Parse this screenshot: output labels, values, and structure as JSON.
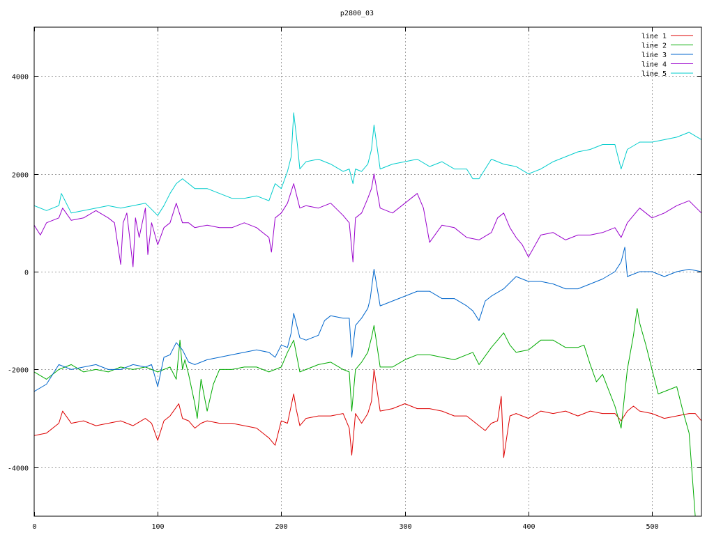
{
  "chart_data": {
    "type": "line",
    "title": "p2800_03",
    "xlabel": "",
    "ylabel": "",
    "xlim": [
      0,
      540
    ],
    "ylim": [
      -5000,
      5000
    ],
    "x_ticks": [
      0,
      100,
      200,
      300,
      400,
      500
    ],
    "y_ticks": [
      -4000,
      -2000,
      0,
      2000,
      4000
    ],
    "x_tick_labels": [
      "0",
      "100",
      "200",
      "300",
      "400",
      "500"
    ],
    "y_tick_labels": [
      "-4000",
      "-2000",
      "0",
      "2000",
      "4000"
    ],
    "grid": true,
    "legend_position": "top-right",
    "series": [
      {
        "name": "line 1",
        "color": "#dd0000",
        "x": [
          0,
          10,
          20,
          23,
          30,
          40,
          50,
          60,
          70,
          80,
          90,
          95,
          100,
          105,
          110,
          117,
          120,
          125,
          130,
          135,
          140,
          150,
          160,
          170,
          180,
          190,
          195,
          200,
          205,
          210,
          212,
          215,
          220,
          230,
          240,
          250,
          255,
          257,
          260,
          265,
          270,
          273,
          275,
          280,
          290,
          300,
          310,
          320,
          330,
          340,
          350,
          360,
          365,
          370,
          375,
          378,
          380,
          385,
          390,
          400,
          410,
          420,
          430,
          440,
          450,
          460,
          470,
          475,
          480,
          485,
          490,
          500,
          510,
          520,
          530,
          535,
          540
        ],
        "y": [
          -3350,
          -3300,
          -3100,
          -2850,
          -3100,
          -3050,
          -3150,
          -3100,
          -3050,
          -3150,
          -3000,
          -3100,
          -3450,
          -3050,
          -2950,
          -2700,
          -3000,
          -3050,
          -3200,
          -3100,
          -3050,
          -3100,
          -3100,
          -3150,
          -3200,
          -3400,
          -3550,
          -3050,
          -3100,
          -2500,
          -2800,
          -3150,
          -3000,
          -2950,
          -2950,
          -2900,
          -3200,
          -3750,
          -2900,
          -3100,
          -2900,
          -2650,
          -2000,
          -2850,
          -2800,
          -2700,
          -2800,
          -2800,
          -2850,
          -2950,
          -2950,
          -3150,
          -3250,
          -3100,
          -3050,
          -2550,
          -3800,
          -2950,
          -2900,
          -3000,
          -2850,
          -2900,
          -2850,
          -2950,
          -2850,
          -2900,
          -2900,
          -3050,
          -2850,
          -2750,
          -2850,
          -2900,
          -3000,
          -2950,
          -2900,
          -2900,
          -3050
        ]
      },
      {
        "name": "line 2",
        "color": "#00aa00",
        "x": [
          0,
          10,
          20,
          30,
          40,
          50,
          60,
          70,
          80,
          90,
          100,
          110,
          115,
          118,
          120,
          122,
          125,
          130,
          132,
          135,
          140,
          145,
          150,
          160,
          170,
          180,
          190,
          200,
          205,
          210,
          215,
          220,
          230,
          240,
          250,
          255,
          257,
          260,
          265,
          270,
          273,
          275,
          280,
          290,
          300,
          310,
          320,
          330,
          340,
          350,
          355,
          360,
          370,
          375,
          380,
          385,
          390,
          400,
          410,
          420,
          430,
          440,
          445,
          450,
          455,
          460,
          470,
          475,
          480,
          485,
          488,
          490,
          495,
          500,
          505,
          510,
          515,
          520,
          525,
          530,
          535,
          540
        ],
        "y": [
          -2050,
          -2200,
          -2000,
          -1900,
          -2050,
          -2000,
          -2050,
          -1950,
          -2000,
          -1950,
          -2050,
          -1950,
          -2200,
          -1400,
          -2000,
          -1800,
          -2100,
          -2700,
          -3000,
          -2200,
          -2850,
          -2300,
          -2000,
          -2000,
          -1950,
          -1950,
          -2050,
          -1950,
          -1650,
          -1400,
          -2050,
          -2000,
          -1900,
          -1850,
          -2000,
          -2050,
          -2850,
          -2000,
          -1850,
          -1650,
          -1350,
          -1100,
          -1950,
          -1950,
          -1800,
          -1700,
          -1700,
          -1750,
          -1800,
          -1700,
          -1650,
          -1900,
          -1550,
          -1400,
          -1250,
          -1500,
          -1650,
          -1600,
          -1400,
          -1400,
          -1550,
          -1550,
          -1500,
          -1900,
          -2250,
          -2100,
          -2750,
          -3200,
          -2000,
          -1300,
          -750,
          -1050,
          -1500,
          -2000,
          -2500,
          -2450,
          -2400,
          -2350,
          -2850,
          -3300,
          -5000,
          -5000
        ]
      },
      {
        "name": "line 3",
        "color": "#0066cc",
        "x": [
          0,
          10,
          20,
          30,
          40,
          50,
          60,
          70,
          80,
          90,
          95,
          100,
          105,
          110,
          115,
          120,
          125,
          130,
          140,
          150,
          160,
          170,
          180,
          190,
          195,
          200,
          205,
          208,
          210,
          215,
          220,
          230,
          235,
          240,
          250,
          255,
          257,
          260,
          265,
          270,
          272,
          275,
          280,
          290,
          300,
          310,
          320,
          330,
          340,
          350,
          355,
          360,
          365,
          370,
          380,
          390,
          400,
          410,
          420,
          430,
          440,
          450,
          460,
          470,
          475,
          478,
          480,
          490,
          500,
          510,
          520,
          530,
          540
        ],
        "y": [
          -2450,
          -2300,
          -1900,
          -2000,
          -1950,
          -1900,
          -2000,
          -2000,
          -1900,
          -1950,
          -1900,
          -2350,
          -1750,
          -1700,
          -1450,
          -1600,
          -1850,
          -1900,
          -1800,
          -1750,
          -1700,
          -1650,
          -1600,
          -1650,
          -1750,
          -1500,
          -1550,
          -1250,
          -850,
          -1350,
          -1400,
          -1300,
          -1000,
          -900,
          -950,
          -950,
          -1750,
          -1100,
          -950,
          -750,
          -550,
          50,
          -700,
          -600,
          -500,
          -400,
          -400,
          -550,
          -550,
          -700,
          -800,
          -1000,
          -600,
          -500,
          -350,
          -100,
          -200,
          -200,
          -250,
          -350,
          -350,
          -250,
          -150,
          0,
          200,
          500,
          -100,
          0,
          0,
          -100,
          0,
          50,
          0
        ]
      },
      {
        "name": "line 4",
        "color": "#9900cc",
        "x": [
          0,
          5,
          10,
          20,
          23,
          30,
          40,
          50,
          60,
          65,
          70,
          72,
          75,
          80,
          82,
          85,
          90,
          92,
          95,
          100,
          105,
          110,
          115,
          120,
          125,
          130,
          140,
          150,
          160,
          170,
          180,
          190,
          192,
          195,
          200,
          205,
          210,
          215,
          220,
          230,
          240,
          250,
          255,
          258,
          260,
          265,
          270,
          273,
          275,
          280,
          290,
          300,
          310,
          315,
          320,
          330,
          340,
          350,
          360,
          370,
          375,
          380,
          385,
          390,
          395,
          400,
          410,
          420,
          430,
          440,
          450,
          460,
          470,
          475,
          480,
          490,
          500,
          510,
          520,
          530,
          540
        ],
        "y": [
          950,
          750,
          1000,
          1100,
          1300,
          1050,
          1100,
          1250,
          1100,
          1000,
          150,
          1000,
          1200,
          100,
          1100,
          700,
          1300,
          350,
          1000,
          550,
          900,
          1000,
          1400,
          1000,
          1000,
          900,
          950,
          900,
          900,
          1000,
          900,
          700,
          400,
          1100,
          1200,
          1400,
          1800,
          1300,
          1350,
          1300,
          1400,
          1150,
          1000,
          200,
          1100,
          1200,
          1500,
          1700,
          2000,
          1300,
          1200,
          1400,
          1600,
          1300,
          600,
          950,
          900,
          700,
          650,
          800,
          1100,
          1200,
          900,
          700,
          550,
          300,
          750,
          800,
          650,
          750,
          750,
          800,
          900,
          700,
          1000,
          1300,
          1100,
          1200,
          1350,
          1450,
          1200
        ]
      },
      {
        "name": "line 5",
        "color": "#00cccc",
        "x": [
          0,
          10,
          20,
          22,
          30,
          40,
          50,
          60,
          70,
          80,
          90,
          100,
          105,
          110,
          115,
          120,
          130,
          140,
          150,
          160,
          170,
          180,
          190,
          195,
          200,
          205,
          208,
          210,
          213,
          215,
          220,
          230,
          240,
          250,
          255,
          258,
          260,
          265,
          270,
          273,
          275,
          280,
          290,
          300,
          310,
          320,
          330,
          340,
          350,
          355,
          360,
          370,
          380,
          390,
          400,
          410,
          420,
          430,
          440,
          450,
          460,
          470,
          475,
          480,
          490,
          500,
          510,
          520,
          530,
          540
        ],
        "y": [
          1350,
          1250,
          1350,
          1600,
          1200,
          1250,
          1300,
          1350,
          1300,
          1350,
          1400,
          1150,
          1350,
          1600,
          1800,
          1900,
          1700,
          1700,
          1600,
          1500,
          1500,
          1550,
          1450,
          1800,
          1700,
          2050,
          2350,
          3250,
          2600,
          2100,
          2250,
          2300,
          2200,
          2050,
          2100,
          1800,
          2100,
          2050,
          2200,
          2500,
          3000,
          2100,
          2200,
          2250,
          2300,
          2150,
          2250,
          2100,
          2100,
          1900,
          1900,
          2300,
          2200,
          2150,
          2000,
          2100,
          2250,
          2350,
          2450,
          2500,
          2600,
          2600,
          2100,
          2500,
          2650,
          2650,
          2700,
          2750,
          2850,
          2700
        ]
      }
    ]
  }
}
